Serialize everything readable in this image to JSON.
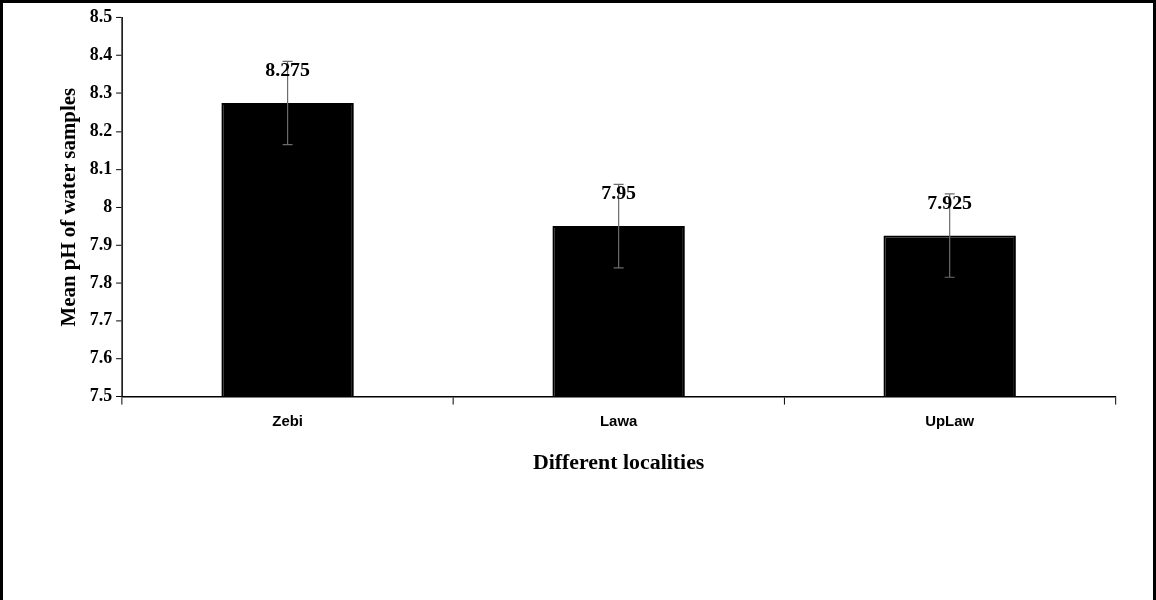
{
  "chart_data": {
    "type": "bar",
    "xlabel": "Different localities",
    "ylabel": "Mean pH of water samples",
    "categories": [
      "Zebi",
      "Lawa",
      "UpLaw"
    ],
    "values": [
      8.275,
      7.95,
      7.925
    ],
    "errors": [
      0.11,
      0.11,
      0.11
    ],
    "color": "#000000",
    "ylim": [
      7.5,
      8.5
    ],
    "yticks": [
      7.5,
      7.6,
      7.7,
      7.8,
      7.9,
      8,
      8.1,
      8.2,
      8.3,
      8.4,
      8.5
    ],
    "data_labels": true,
    "grid": false,
    "legend": false
  }
}
